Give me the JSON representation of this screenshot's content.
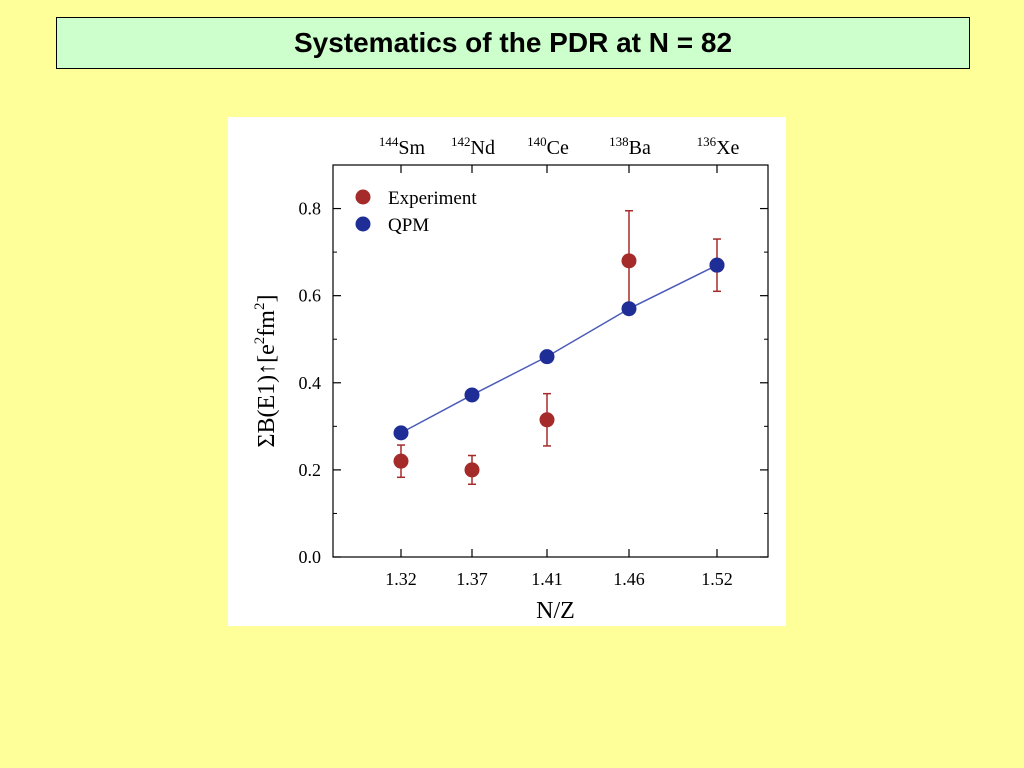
{
  "slide": {
    "title": "Systematics of the PDR at N = 82"
  },
  "chart_data": {
    "type": "scatter",
    "categories": [
      "1.32",
      "1.37",
      "1.41",
      "1.46",
      "1.52"
    ],
    "x": [
      1.32,
      1.37,
      1.41,
      1.46,
      1.52
    ],
    "nuclei": [
      {
        "mass": "144",
        "symbol": "Sm"
      },
      {
        "mass": "142",
        "symbol": "Nd"
      },
      {
        "mass": "140",
        "symbol": "Ce"
      },
      {
        "mass": "138",
        "symbol": "Ba"
      },
      {
        "mass": "136",
        "symbol": "Xe"
      }
    ],
    "series": [
      {
        "name": "Experiment",
        "color": "#a52a2a",
        "values": [
          0.22,
          0.2,
          0.315,
          0.68,
          0.67
        ],
        "errors": [
          0.037,
          0.033,
          0.06,
          0.115,
          0.06
        ]
      },
      {
        "name": "QPM",
        "color": "#1f2d96",
        "values": [
          0.285,
          0.372,
          0.46,
          0.57,
          0.67
        ],
        "line": true
      }
    ],
    "xlabel": "N/Z",
    "ylabel": {
      "sigma": "Σ",
      "be1": "B(E1)↑[e",
      "exp1": "2",
      "fm": "fm",
      "exp2": "2",
      "close": "]"
    },
    "ylim": [
      0.0,
      0.9
    ],
    "yticks": [
      "0.0",
      "0.2",
      "0.4",
      "0.6",
      "0.8"
    ],
    "ytick_values": [
      0.0,
      0.2,
      0.4,
      0.6,
      0.8
    ],
    "legend_placement": "top-left",
    "grid": false
  }
}
